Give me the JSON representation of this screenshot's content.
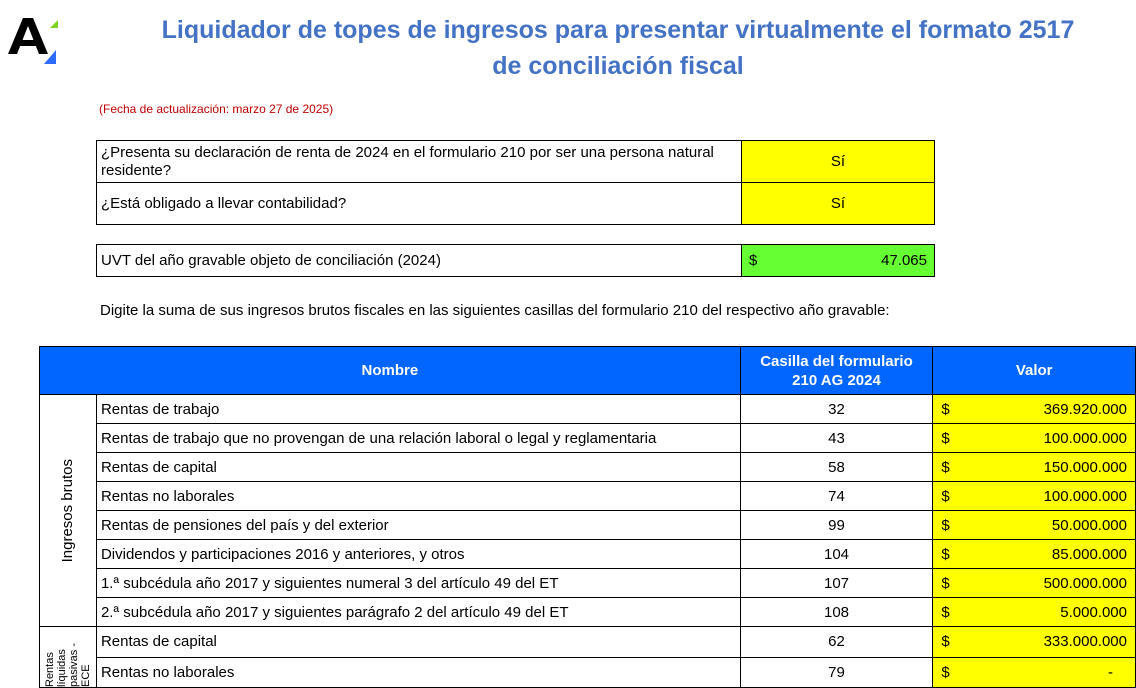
{
  "header": {
    "title_line1": "Liquidador de topes de ingresos para presentar virtualmente el formato 2517",
    "title_line2": "de conciliación fiscal",
    "update_date": "(Fecha de actualización: marzo 27 de 2025)",
    "logo_letter": "A",
    "logo_icon": "actualicese-logo",
    "accent_color": "#4472C4"
  },
  "questions": [
    {
      "text": "¿Presenta su declaración de renta de 2024 en el formulario 210 por ser una persona natural residente?",
      "answer": "Sí"
    },
    {
      "text": "¿Está obligado a llevar contabilidad?",
      "answer": "Sí"
    }
  ],
  "uvt": {
    "label": "UVT del año gravable objeto de conciliación (2024)",
    "currency": "$",
    "value": "47.065"
  },
  "instruction": "Digite la suma de sus ingresos brutos fiscales en las siguientes casillas del formulario 210 del respectivo año gravable:",
  "table": {
    "headers": {
      "name": "Nombre",
      "box": "Casilla del formulario 210 AG 2024",
      "value": "Valor"
    },
    "groups": [
      {
        "label": "Ingresos brutos",
        "rows": [
          {
            "name": "Rentas de trabajo",
            "box": "32",
            "currency": "$",
            "value": "369.920.000"
          },
          {
            "name": "Rentas de trabajo que no provengan de una relación laboral o legal y reglamentaria",
            "box": "43",
            "currency": "$",
            "value": "100.000.000"
          },
          {
            "name": "Rentas de capital",
            "box": "58",
            "currency": "$",
            "value": "150.000.000"
          },
          {
            "name": "Rentas no laborales",
            "box": "74",
            "currency": "$",
            "value": "100.000.000"
          },
          {
            "name": "Rentas de pensiones del país y del exterior",
            "box": "99",
            "currency": "$",
            "value": "50.000.000"
          },
          {
            "name": "Dividendos y participaciones 2016 y anteriores, y otros",
            "box": "104",
            "currency": "$",
            "value": "85.000.000"
          },
          {
            "name": "1.ª subcédula año 2017 y siguientes numeral 3 del artículo 49 del ET",
            "box": "107",
            "currency": "$",
            "value": "500.000.000"
          },
          {
            "name": "2.ª subcédula año 2017 y siguientes parágrafo 2 del artículo 49 del ET",
            "box": "108",
            "currency": "$",
            "value": "5.000.000"
          }
        ]
      },
      {
        "label": "Rentas líquidas pasivas - ECE",
        "rows": [
          {
            "name": "Rentas de capital",
            "box": "62",
            "currency": "$",
            "value": "333.000.000"
          },
          {
            "name": "Rentas no laborales",
            "box": "79",
            "currency": "$",
            "value": "-"
          }
        ]
      }
    ]
  }
}
